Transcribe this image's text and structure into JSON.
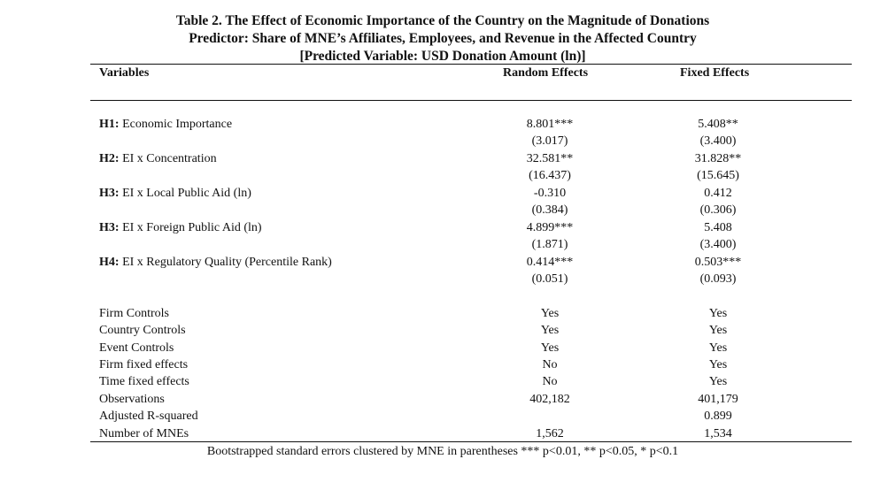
{
  "title": {
    "line1": "Table 2. The Effect of Economic Importance of the Country on the Magnitude of Donations",
    "line2": "Predictor: Share of MNE’s Affiliates, Employees, and Revenue in the Affected Country",
    "line3": "[Predicted Variable: USD Donation Amount (ln)]"
  },
  "header": {
    "variables": "Variables",
    "random": "Random Effects",
    "fixed": "Fixed Effects"
  },
  "hypotheses": [
    {
      "code": "H1:",
      "label": "Economic Importance",
      "re": "8.801***",
      "re_se": "(3.017)",
      "fe": "5.408**",
      "fe_se": "(3.400)"
    },
    {
      "code": "H2:",
      "label": "EI x Concentration",
      "re": "32.581**",
      "re_se": "(16.437)",
      "fe": "31.828**",
      "fe_se": "(15.645)"
    },
    {
      "code": "H3:",
      "label": "EI x Local Public Aid (ln)",
      "re": "-0.310",
      "re_se": "(0.384)",
      "fe": "0.412",
      "fe_se": "(0.306)"
    },
    {
      "code": "H3:",
      "label": "EI x Foreign Public Aid (ln)",
      "re": "4.899***",
      "re_se": "(1.871)",
      "fe": "5.408",
      "fe_se": "(3.400)"
    },
    {
      "code": "H4:",
      "label": "EI x Regulatory Quality (Percentile Rank)",
      "re": "0.414***",
      "re_se": "(0.051)",
      "fe": "0.503***",
      "fe_se": "(0.093)"
    }
  ],
  "controls": [
    {
      "label": "Firm Controls",
      "re": "Yes",
      "fe": "Yes"
    },
    {
      "label": "Country Controls",
      "re": "Yes",
      "fe": "Yes"
    },
    {
      "label": "Event Controls",
      "re": "Yes",
      "fe": "Yes"
    },
    {
      "label": "Firm fixed effects",
      "re": "No",
      "fe": "Yes"
    },
    {
      "label": "Time fixed effects",
      "re": "No",
      "fe": "Yes"
    },
    {
      "label": "Observations",
      "re": "402,182",
      "fe": "401,179"
    },
    {
      "label": "Adjusted R-squared",
      "re": "",
      "fe": "0.899"
    },
    {
      "label": "Number of MNEs",
      "re": "1,562",
      "fe": "1,534"
    }
  ],
  "note": "Bootstrapped standard errors clustered by MNE in parentheses *** p<0.01, ** p<0.05, * p<0.1"
}
